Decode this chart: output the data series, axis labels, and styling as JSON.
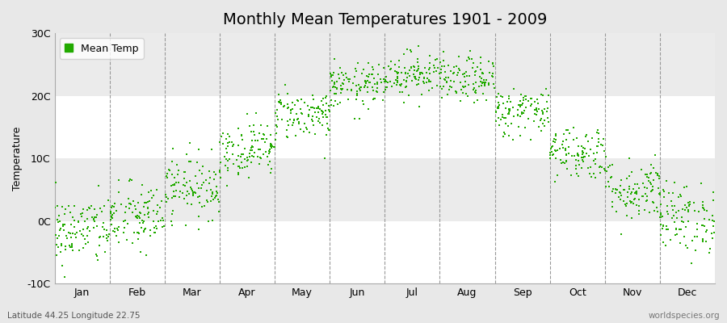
{
  "title": "Monthly Mean Temperatures 1901 - 2009",
  "ylabel": "Temperature",
  "ylim": [
    -10,
    30
  ],
  "yticks": [
    -10,
    0,
    10,
    20,
    30
  ],
  "ytick_labels": [
    "-10C",
    "0C",
    "10C",
    "20C",
    "30C"
  ],
  "months": [
    "Jan",
    "Feb",
    "Mar",
    "Apr",
    "May",
    "Jun",
    "Jul",
    "Aug",
    "Sep",
    "Oct",
    "Nov",
    "Dec"
  ],
  "month_means": [
    -1.5,
    0.5,
    5.5,
    11.5,
    17.0,
    21.5,
    23.5,
    22.5,
    17.5,
    11.0,
    5.0,
    0.5
  ],
  "month_stds": [
    2.8,
    2.8,
    2.5,
    2.2,
    2.0,
    1.8,
    1.8,
    1.8,
    2.0,
    2.2,
    2.5,
    2.8
  ],
  "n_years": 109,
  "dot_color": "#22aa00",
  "dot_size": 3,
  "fig_bg_color": "#e8e8e8",
  "plot_bg_color": "#ffffff",
  "band_color": "#ebebeb",
  "legend_label": "Mean Temp",
  "bottom_left": "Latitude 44.25 Longitude 22.75",
  "bottom_right": "worldspecies.org",
  "title_fontsize": 14,
  "label_fontsize": 9,
  "tick_fontsize": 9,
  "dashed_line_color": "#999999"
}
